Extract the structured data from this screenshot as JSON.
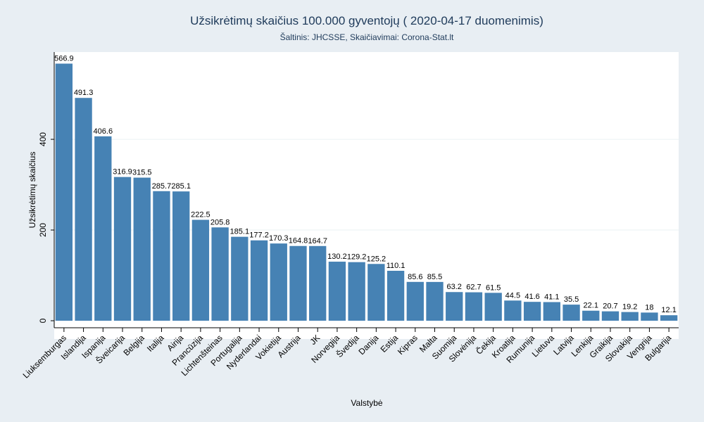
{
  "chart_data": {
    "type": "bar",
    "title": "Užsikrėtimų skaičius 100.000 gyventojų ( 2020-04-17 duomenimis)",
    "subtitle": "Šaltinis: JHCSSE, Skaičiavimai: Corona-Stat.lt",
    "xlabel": "Valstybė",
    "ylabel": "Užsikrėtimų skaičius",
    "ylim": [
      0,
      600
    ],
    "yticks": [
      0,
      200,
      400
    ],
    "grid": true,
    "categories": [
      "Liuksemburgas",
      "Islandija",
      "Ispanija",
      "Šveicarija",
      "Belgija",
      "Italija",
      "Airija",
      "Prancūzija",
      "Lichtenšteinas",
      "Portugalija",
      "Nyderlandai",
      "Vokietija",
      "Austrija",
      "JK",
      "Norvegija",
      "Švedija",
      "Danija",
      "Estija",
      "Kipras",
      "Malta",
      "Suomija",
      "Slovėnija",
      "Čekija",
      "Kroatija",
      "Rumunija",
      "Lietuva",
      "Latvija",
      "Lenkija",
      "Graikija",
      "Slovakija",
      "Vengrija",
      "Bulgarija"
    ],
    "values": [
      566.9,
      491.3,
      406.6,
      316.9,
      315.5,
      285.7,
      285.1,
      222.5,
      205.8,
      185.1,
      177.2,
      170.3,
      164.8,
      164.7,
      130.2,
      129.2,
      125.2,
      110.1,
      85.6,
      85.5,
      63.2,
      62.7,
      61.5,
      44.5,
      41.6,
      41.1,
      35.5,
      22.1,
      20.7,
      19.2,
      18,
      12.1
    ],
    "value_labels": [
      "566.9",
      "491.3",
      "406.6",
      "316.9",
      "315.5",
      "285.7",
      "285.1",
      "222.5",
      "205.8",
      "185.1",
      "177.2",
      "170.3",
      "164.8",
      "164.7",
      "130.2",
      "129.2",
      "125.2",
      "110.1",
      "85.6",
      "85.5",
      "63.2",
      "62.7",
      "61.5",
      "44.5",
      "41.6",
      "41.1",
      "35.5",
      "22.1",
      "20.7",
      "19.2",
      "18",
      "12.1"
    ],
    "colors": {
      "bar": "#4682b4",
      "background": "#e8eef3",
      "plot_background": "#ffffff",
      "grid": "#eaf2f3",
      "title": "#1e3a5a"
    }
  }
}
